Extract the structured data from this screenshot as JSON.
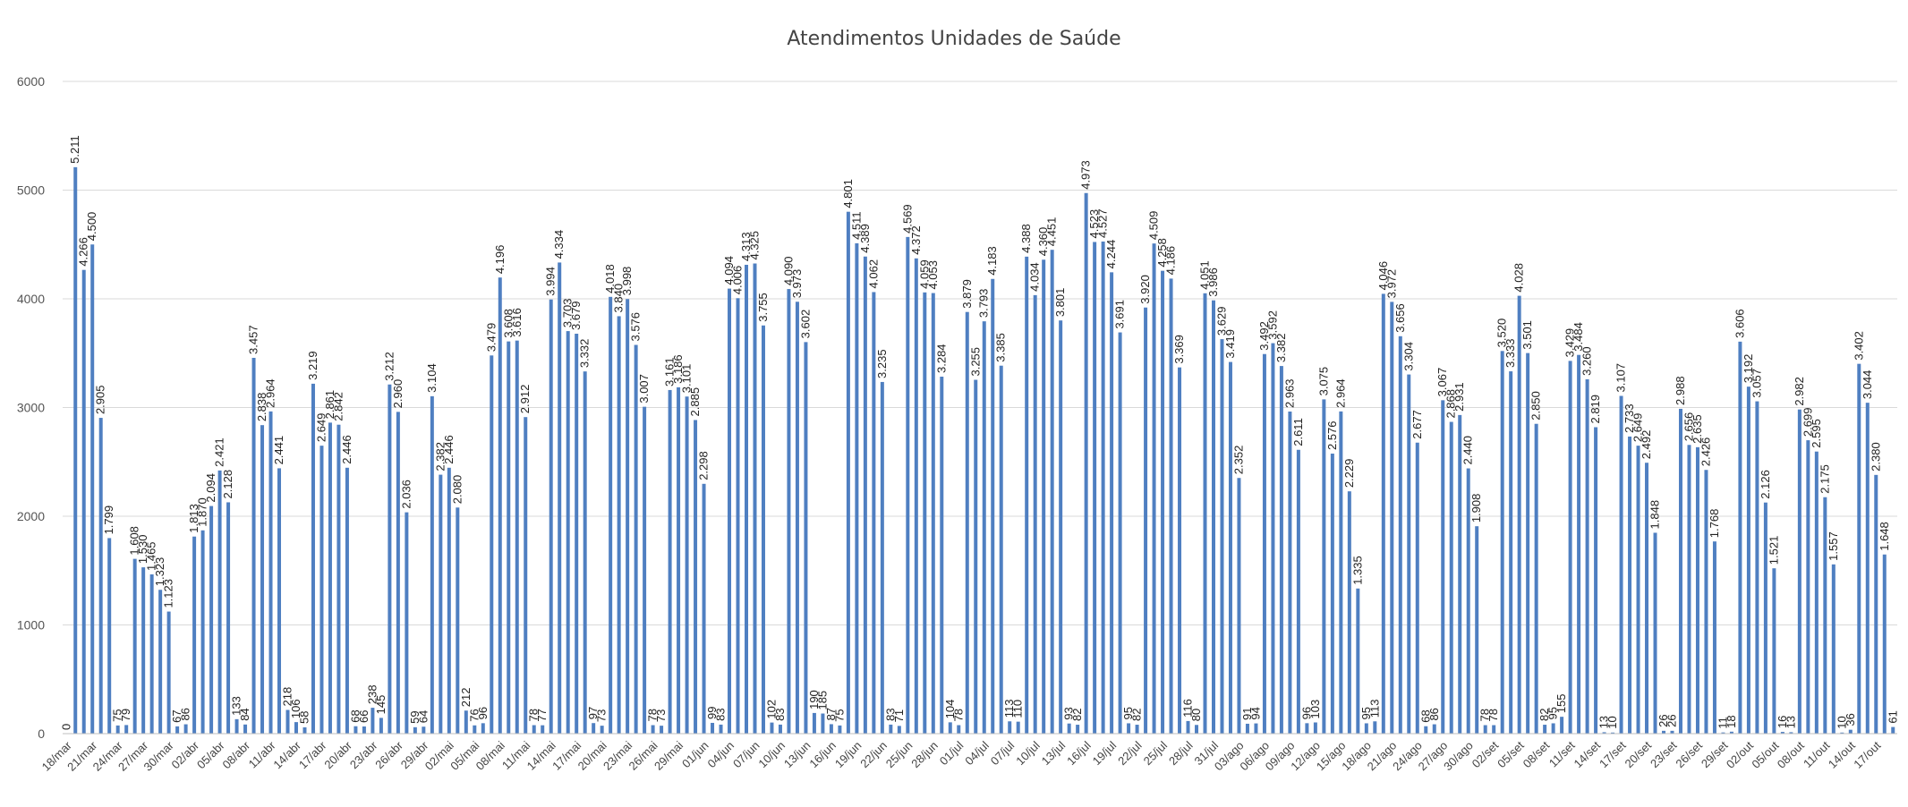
{
  "chart_data": {
    "type": "bar",
    "title": "Atendimentos Unidades de Saúde",
    "xlabel": "",
    "ylabel": "",
    "ylim": [
      0,
      6000
    ],
    "yticks": [
      "0",
      "1000",
      "2000",
      "3000",
      "4000",
      "5000",
      "6000"
    ],
    "grid": true,
    "legend": "none",
    "bar_color": "#4f7fc1",
    "xtick_labels": [
      "18/mar",
      "21/mar",
      "24/mar",
      "27/mar",
      "30/mar",
      "02/abr",
      "05/abr",
      "08/abr",
      "11/abr",
      "14/abr",
      "17/abr",
      "20/abr",
      "23/abr",
      "26/abr",
      "29/abr",
      "02/mai",
      "05/mai",
      "08/mai",
      "11/mai",
      "14/mai",
      "17/mai",
      "20/mai",
      "23/mai",
      "26/mai",
      "29/mai",
      "01/jun",
      "04/jun",
      "07/jun",
      "10/jun",
      "13/jun",
      "16/jun",
      "19/jun",
      "22/jun",
      "25/jun",
      "28/jun",
      "01/jul",
      "04/jul",
      "07/jul",
      "10/jul",
      "13/jul",
      "16/jul",
      "19/jul",
      "22/jul",
      "25/jul",
      "28/jul",
      "31/jul",
      "03/ago",
      "06/ago",
      "09/ago",
      "12/ago",
      "15/ago",
      "18/ago",
      "21/ago",
      "24/ago",
      "27/ago",
      "30/ago",
      "02/set",
      "05/set",
      "08/set",
      "11/set",
      "14/set",
      "17/set",
      "20/set",
      "23/set",
      "26/set",
      "29/set",
      "02/out",
      "05/out",
      "08/out",
      "11/out",
      "14/out",
      "17/out"
    ],
    "values": [
      0,
      5211,
      4266,
      4500,
      2905,
      1799,
      75,
      79,
      1608,
      1530,
      1465,
      1323,
      1123,
      67,
      86,
      1813,
      1870,
      2094,
      2421,
      2128,
      133,
      84,
      3457,
      2838,
      2964,
      2441,
      218,
      106,
      58,
      3219,
      2649,
      2861,
      2842,
      2446,
      68,
      66,
      238,
      145,
      3212,
      2960,
      2036,
      59,
      64,
      3104,
      2382,
      2446,
      2080,
      212,
      76,
      96,
      3479,
      4196,
      3608,
      3616,
      2912,
      78,
      77,
      3994,
      4334,
      3703,
      3679,
      3332,
      97,
      73,
      4018,
      3840,
      3998,
      3576,
      3007,
      78,
      73,
      3161,
      3186,
      3101,
      2885,
      2298,
      99,
      83,
      4094,
      4006,
      4313,
      4325,
      3755,
      102,
      83,
      4090,
      3973,
      3602,
      190,
      185,
      87,
      75,
      4801,
      4511,
      4389,
      4062,
      3235,
      83,
      71,
      4569,
      4372,
      4059,
      4053,
      3284,
      104,
      78,
      3879,
      3255,
      3793,
      4183,
      3385,
      113,
      110,
      4388,
      4034,
      4360,
      4451,
      3801,
      93,
      82,
      4973,
      4523,
      4527,
      4244,
      3691,
      95,
      82,
      3920,
      4509,
      4258,
      4186,
      3369,
      116,
      80,
      4051,
      3986,
      3629,
      3419,
      2352,
      91,
      94,
      3492,
      3592,
      3382,
      2963,
      2611,
      96,
      103,
      3075,
      2576,
      2964,
      2229,
      1335,
      95,
      113,
      4046,
      3972,
      3656,
      3304,
      2677,
      68,
      86,
      3067,
      2868,
      2931,
      2440,
      1908,
      78,
      78,
      3520,
      3333,
      4028,
      3501,
      2850,
      82,
      95,
      155,
      3429,
      3484,
      3260,
      2819,
      13,
      10,
      3107,
      2733,
      2649,
      2492,
      1848,
      26,
      26,
      2988,
      2656,
      2635,
      2426,
      1768,
      11,
      18,
      3606,
      3192,
      3057,
      2126,
      1521,
      16,
      13,
      2982,
      2699,
      2595,
      2175,
      1557,
      10,
      36,
      3402,
      3044,
      2380,
      1648,
      61
    ],
    "data_labels": [
      "0",
      "5.211",
      "4.266",
      "4.500",
      "2.905",
      "1.799",
      "75",
      "79",
      "1.608",
      "1.530",
      "1.465",
      "1.323",
      "1.123",
      "67",
      "86",
      "1.813",
      "1.870",
      "2.094",
      "2.421",
      "2.128",
      "133",
      "84",
      "3.457",
      "2.838",
      "2.964",
      "2.441",
      "218",
      "106",
      "58",
      "3.219",
      "2.649",
      "2.861",
      "2.842",
      "2.446",
      "68",
      "66",
      "238",
      "145",
      "3.212",
      "2.960",
      "2.036",
      "59",
      "64",
      "3.104",
      "2.382",
      "2.446",
      "2.080",
      "212",
      "76",
      "96",
      "3.479",
      "4.196",
      "3.608",
      "3.616",
      "2.912",
      "78",
      "77",
      "3.994",
      "4.334",
      "3.703",
      "3.679",
      "3.332",
      "97",
      "73",
      "4.018",
      "3.840",
      "3.998",
      "3.576",
      "3.007",
      "78",
      "73",
      "3.161",
      "3.186",
      "3.101",
      "2.885",
      "2.298",
      "99",
      "83",
      "4.094",
      "4.006",
      "4.313",
      "4.325",
      "3.755",
      "102",
      "83",
      "4.090",
      "3.973",
      "3.602",
      "190",
      "185",
      "87",
      "75",
      "4.801",
      "4.511",
      "4.389",
      "4.062",
      "3.235",
      "83",
      "71",
      "4.569",
      "4.372",
      "4.059",
      "4.053",
      "3.284",
      "104",
      "78",
      "3.879",
      "3.255",
      "3.793",
      "4.183",
      "3.385",
      "113",
      "110",
      "4.388",
      "4.034",
      "4.360",
      "4.451",
      "3.801",
      "93",
      "82",
      "4.973",
      "4.523",
      "4.527",
      "4.244",
      "3.691",
      "95",
      "82",
      "3.920",
      "4.509",
      "4.258",
      "4.186",
      "3.369",
      "116",
      "80",
      "4.051",
      "3.986",
      "3.629",
      "3.419",
      "2.352",
      "91",
      "94",
      "3.492",
      "3.592",
      "3.382",
      "2.963",
      "2.611",
      "96",
      "103",
      "3.075",
      "2.576",
      "2.964",
      "2.229",
      "1.335",
      "95",
      "113",
      "4.046",
      "3.972",
      "3.656",
      "3.304",
      "2.677",
      "68",
      "86",
      "3.067",
      "2.868",
      "2.931",
      "2.440",
      "1.908",
      "78",
      "78",
      "3.520",
      "3.333",
      "4.028",
      "3.501",
      "2.850",
      "82",
      "95",
      "155",
      "3.429",
      "3.484",
      "3.260",
      "2.819",
      "13",
      "10",
      "3.107",
      "2.733",
      "2.649",
      "2.492",
      "1.848",
      "26",
      "26",
      "2.988",
      "2.656",
      "2.635",
      "2.426",
      "1.768",
      "11",
      "18",
      "3.606",
      "3.192",
      "3.057",
      "2.126",
      "1.521",
      "16",
      "13",
      "2.982",
      "2.699",
      "2.595",
      "2.175",
      "1.557",
      "10",
      "36",
      "3.402",
      "3.044",
      "2.380",
      "1.648",
      "61"
    ]
  }
}
